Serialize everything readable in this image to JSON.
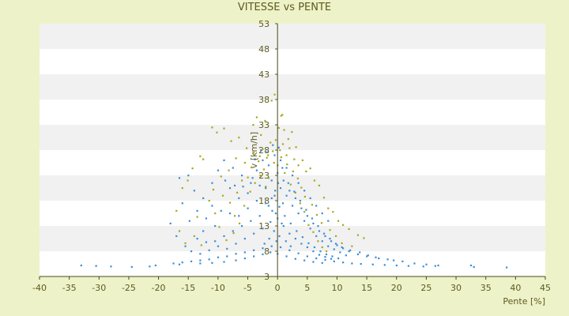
{
  "chart_data": {
    "type": "scatter",
    "title": "VITESSE vs PENTE",
    "xlabel": "Pente [%]",
    "ylabel": "v [km/h]",
    "xlim": [
      -40,
      45
    ],
    "ylim": [
      3,
      53
    ],
    "x_ticks": [
      -40,
      -35,
      -30,
      -25,
      -20,
      -15,
      -10,
      -5,
      0,
      5,
      10,
      15,
      20,
      25,
      30,
      35,
      40,
      45
    ],
    "y_ticks": [
      3,
      8,
      13,
      18,
      23,
      28,
      33,
      38,
      43,
      48,
      53
    ],
    "grid": "horizontal alternating bands",
    "legend": "none",
    "colors": {
      "plot_background": "#ffffff",
      "band": "#f1f1f1",
      "page_background": "#eef2c9",
      "series_1": "#3a8fd8",
      "series_2": "#a8a820",
      "axis": "#4a4a18",
      "text": "#5e5a1e"
    },
    "series": [
      {
        "color": "#a8a820",
        "points": [
          [
            -11.0,
            32.5
          ],
          [
            -10.2,
            31.5
          ],
          [
            -9.0,
            32.3
          ],
          [
            -7.8,
            29.8
          ],
          [
            -6.5,
            30.5
          ],
          [
            -5.2,
            28.4
          ],
          [
            -4.1,
            33.0
          ],
          [
            -3.5,
            34.5
          ],
          [
            -2.8,
            31.0
          ],
          [
            -2.1,
            33.8
          ],
          [
            -1.0,
            37.8
          ],
          [
            -0.5,
            39.0
          ],
          [
            0.2,
            32.4
          ],
          [
            0.6,
            34.8
          ],
          [
            1.1,
            32.0
          ],
          [
            1.8,
            30.2
          ],
          [
            2.4,
            31.6
          ],
          [
            3.1,
            28.6
          ],
          [
            -12.5,
            26.2
          ],
          [
            -13.0,
            26.8
          ],
          [
            -14.3,
            24.4
          ],
          [
            -15.1,
            22.0
          ],
          [
            -16.0,
            20.5
          ],
          [
            -17.0,
            16.0
          ],
          [
            -9.5,
            22.8
          ],
          [
            -8.2,
            24.0
          ],
          [
            -7.0,
            26.4
          ],
          [
            -6.0,
            22.0
          ],
          [
            -5.5,
            25.5
          ],
          [
            -4.0,
            27.5
          ],
          [
            -3.2,
            25.8
          ],
          [
            -2.5,
            28.2
          ],
          [
            -1.8,
            26.5
          ],
          [
            -1.2,
            29.5
          ],
          [
            -0.8,
            27.8
          ],
          [
            -0.3,
            30.0
          ],
          [
            0.4,
            28.0
          ],
          [
            0.9,
            29.2
          ],
          [
            1.5,
            27.0
          ],
          [
            2.0,
            28.4
          ],
          [
            2.8,
            26.2
          ],
          [
            3.5,
            25.0
          ],
          [
            4.2,
            26.0
          ],
          [
            4.8,
            23.8
          ],
          [
            5.5,
            24.4
          ],
          [
            6.2,
            22.0
          ],
          [
            7.0,
            21.0
          ],
          [
            7.8,
            18.6
          ],
          [
            8.5,
            16.5
          ],
          [
            9.3,
            15.8
          ],
          [
            10.2,
            14.0
          ],
          [
            11.0,
            13.2
          ],
          [
            12.0,
            12.4
          ],
          [
            13.5,
            11.2
          ],
          [
            14.5,
            10.6
          ],
          [
            -11.5,
            18.0
          ],
          [
            -10.5,
            15.5
          ],
          [
            -9.8,
            12.8
          ],
          [
            -8.6,
            10.2
          ],
          [
            -7.4,
            11.6
          ],
          [
            -6.4,
            13.5
          ],
          [
            -5.6,
            17.0
          ],
          [
            -4.6,
            19.8
          ],
          [
            -3.8,
            21.5
          ],
          [
            -2.9,
            23.0
          ],
          [
            -2.0,
            20.8
          ],
          [
            -1.5,
            22.5
          ],
          [
            0.0,
            25.0
          ],
          [
            1.2,
            23.5
          ],
          [
            2.2,
            21.2
          ],
          [
            3.0,
            19.6
          ],
          [
            3.8,
            17.5
          ],
          [
            4.5,
            15.8
          ],
          [
            5.2,
            13.2
          ],
          [
            6.0,
            11.8
          ],
          [
            6.8,
            10.0
          ],
          [
            7.5,
            8.8
          ],
          [
            8.2,
            8.0
          ],
          [
            -14.0,
            11.0
          ],
          [
            -12.8,
            9.2
          ],
          [
            -15.5,
            9.6
          ],
          [
            -13.5,
            14.8
          ],
          [
            -16.5,
            12.0
          ],
          [
            -10.8,
            20.2
          ],
          [
            -9.2,
            19.0
          ],
          [
            -8.0,
            17.6
          ],
          [
            -7.2,
            15.0
          ],
          [
            -6.8,
            19.6
          ],
          [
            -5.0,
            22.6
          ],
          [
            -4.4,
            24.6
          ],
          [
            -3.0,
            26.8
          ],
          [
            -2.3,
            24.2
          ],
          [
            -1.6,
            27.0
          ],
          [
            -0.6,
            25.5
          ],
          [
            0.6,
            26.6
          ],
          [
            1.6,
            25.2
          ],
          [
            2.6,
            23.8
          ],
          [
            3.4,
            22.4
          ],
          [
            4.0,
            20.6
          ],
          [
            4.6,
            18.8
          ],
          [
            5.8,
            17.2
          ],
          [
            6.6,
            15.2
          ],
          [
            7.4,
            13.6
          ],
          [
            8.8,
            12.2
          ],
          [
            9.8,
            11.0
          ],
          [
            10.8,
            9.6
          ],
          [
            12.5,
            9.0
          ],
          [
            0.8,
            35.0
          ]
        ]
      },
      {
        "color": "#3a8fd8",
        "points": [
          [
            -33.0,
            5.2
          ],
          [
            -30.5,
            5.1
          ],
          [
            -28.0,
            5.0
          ],
          [
            -24.5,
            4.9
          ],
          [
            -21.5,
            5.0
          ],
          [
            -20.5,
            5.2
          ],
          [
            -17.5,
            5.6
          ],
          [
            -16.0,
            5.8
          ],
          [
            -14.5,
            6.0
          ],
          [
            -13.0,
            6.2
          ],
          [
            -11.5,
            6.4
          ],
          [
            -10.0,
            6.8
          ],
          [
            -8.5,
            7.0
          ],
          [
            -7.0,
            7.5
          ],
          [
            -5.5,
            7.8
          ],
          [
            -4.0,
            8.2
          ],
          [
            -2.5,
            8.6
          ],
          [
            -1.0,
            9.0
          ],
          [
            0.5,
            8.8
          ],
          [
            2.0,
            8.2
          ],
          [
            3.5,
            7.6
          ],
          [
            5.0,
            7.0
          ],
          [
            6.5,
            6.6
          ],
          [
            8.0,
            6.3
          ],
          [
            9.5,
            6.0
          ],
          [
            11.0,
            5.8
          ],
          [
            12.5,
            5.6
          ],
          [
            14.0,
            5.5
          ],
          [
            16.0,
            5.4
          ],
          [
            18.0,
            5.3
          ],
          [
            20.0,
            5.2
          ],
          [
            22.0,
            5.1
          ],
          [
            24.5,
            5.0
          ],
          [
            26.5,
            5.1
          ],
          [
            32.5,
            5.2
          ],
          [
            33.0,
            4.9
          ],
          [
            38.5,
            4.8
          ],
          [
            -15.0,
            23.0
          ],
          [
            -16.5,
            22.5
          ],
          [
            -14.0,
            20.0
          ],
          [
            -12.5,
            18.5
          ],
          [
            -11.0,
            17.0
          ],
          [
            -9.5,
            16.0
          ],
          [
            -8.0,
            15.5
          ],
          [
            -6.5,
            15.0
          ],
          [
            -5.0,
            16.5
          ],
          [
            -3.5,
            18.0
          ],
          [
            -2.0,
            20.5
          ],
          [
            -1.0,
            22.0
          ],
          [
            0.0,
            23.5
          ],
          [
            1.0,
            22.0
          ],
          [
            2.0,
            20.0
          ],
          [
            3.0,
            18.5
          ],
          [
            4.0,
            16.5
          ],
          [
            5.0,
            15.0
          ],
          [
            6.0,
            13.5
          ],
          [
            7.0,
            12.0
          ],
          [
            8.0,
            11.0
          ],
          [
            9.0,
            10.0
          ],
          [
            10.0,
            9.2
          ],
          [
            11.0,
            8.6
          ],
          [
            12.0,
            8.0
          ],
          [
            13.5,
            7.4
          ],
          [
            15.0,
            7.0
          ],
          [
            17.0,
            6.6
          ],
          [
            19.5,
            6.2
          ],
          [
            -13.5,
            10.5
          ],
          [
            -12.0,
            9.8
          ],
          [
            -10.5,
            10.0
          ],
          [
            -9.0,
            11.0
          ],
          [
            -7.5,
            12.0
          ],
          [
            -6.0,
            13.0
          ],
          [
            -4.5,
            14.0
          ],
          [
            -3.0,
            15.0
          ],
          [
            -1.5,
            17.0
          ],
          [
            -0.5,
            19.0
          ],
          [
            0.5,
            20.5
          ],
          [
            1.5,
            19.0
          ],
          [
            2.5,
            17.0
          ],
          [
            3.5,
            15.5
          ],
          [
            4.5,
            14.0
          ],
          [
            5.5,
            12.5
          ],
          [
            6.5,
            11.0
          ],
          [
            7.5,
            10.0
          ],
          [
            8.5,
            9.0
          ],
          [
            9.5,
            8.4
          ],
          [
            10.5,
            7.8
          ],
          [
            11.5,
            7.2
          ],
          [
            -18.0,
            13.5
          ],
          [
            -17.0,
            11.0
          ],
          [
            -15.5,
            9.0
          ],
          [
            -14.5,
            8.0
          ],
          [
            -13.0,
            7.5
          ],
          [
            -11.5,
            8.2
          ],
          [
            -10.0,
            9.0
          ],
          [
            -8.5,
            8.5
          ],
          [
            -7.0,
            9.5
          ],
          [
            -5.5,
            10.5
          ],
          [
            -4.0,
            11.5
          ],
          [
            -2.5,
            12.5
          ],
          [
            -1.2,
            13.8
          ],
          [
            -0.3,
            15.5
          ],
          [
            0.3,
            16.8
          ],
          [
            1.2,
            15.0
          ],
          [
            2.2,
            13.5
          ],
          [
            3.2,
            12.0
          ],
          [
            4.2,
            10.8
          ],
          [
            5.2,
            9.6
          ],
          [
            6.2,
            8.8
          ],
          [
            7.2,
            8.0
          ],
          [
            8.2,
            7.4
          ],
          [
            9.2,
            7.0
          ],
          [
            10.2,
            6.6
          ],
          [
            -9.0,
            26.0
          ],
          [
            -7.5,
            24.5
          ],
          [
            -6.0,
            23.0
          ],
          [
            -4.5,
            21.5
          ],
          [
            -3.5,
            24.0
          ],
          [
            -2.5,
            26.0
          ],
          [
            -1.5,
            25.0
          ],
          [
            -0.5,
            27.0
          ],
          [
            0.5,
            26.0
          ],
          [
            1.5,
            24.5
          ],
          [
            2.5,
            23.0
          ],
          [
            3.5,
            21.5
          ],
          [
            4.5,
            20.0
          ],
          [
            5.5,
            18.5
          ],
          [
            6.5,
            17.0
          ],
          [
            7.5,
            15.5
          ],
          [
            8.5,
            14.0
          ],
          [
            -10.5,
            13.0
          ],
          [
            -12.0,
            14.5
          ],
          [
            -13.5,
            16.0
          ],
          [
            -11.0,
            21.5
          ],
          [
            -8.0,
            20.5
          ],
          [
            -6.5,
            18.5
          ],
          [
            -5.0,
            19.5
          ],
          [
            -3.0,
            21.0
          ],
          [
            -2.0,
            17.5
          ],
          [
            -1.0,
            18.5
          ],
          [
            0.0,
            14.5
          ],
          [
            1.0,
            13.0
          ],
          [
            2.0,
            11.5
          ],
          [
            3.0,
            10.5
          ],
          [
            4.0,
            9.5
          ],
          [
            5.0,
            8.8
          ],
          [
            6.0,
            8.0
          ],
          [
            7.0,
            7.3
          ],
          [
            8.0,
            6.9
          ],
          [
            9.0,
            6.5
          ],
          [
            -5.5,
            6.6
          ],
          [
            -4.0,
            7.0
          ],
          [
            -2.5,
            7.4
          ],
          [
            -1.2,
            7.8
          ],
          [
            0.0,
            7.5
          ],
          [
            1.5,
            7.0
          ],
          [
            3.0,
            6.5
          ],
          [
            4.5,
            6.2
          ],
          [
            6.0,
            5.9
          ],
          [
            7.5,
            5.7
          ],
          [
            -7.0,
            6.2
          ],
          [
            -9.0,
            5.9
          ],
          [
            -11.0,
            5.7
          ],
          [
            -13.0,
            5.6
          ],
          [
            -16.5,
            5.4
          ],
          [
            -12.5,
            12.0
          ],
          [
            -14.8,
            14.0
          ],
          [
            -16.0,
            17.5
          ],
          [
            -10.0,
            24.0
          ],
          [
            -8.8,
            22.0
          ],
          [
            -7.2,
            21.0
          ],
          [
            -5.8,
            20.8
          ],
          [
            -4.2,
            22.5
          ],
          [
            -3.8,
            26.2
          ],
          [
            -2.8,
            28.0
          ],
          [
            -1.8,
            27.6
          ],
          [
            -0.8,
            29.0
          ],
          [
            0.2,
            28.5
          ],
          [
            0.8,
            24.5
          ],
          [
            1.8,
            21.5
          ],
          [
            2.8,
            19.8
          ],
          [
            3.8,
            18.0
          ],
          [
            4.8,
            16.2
          ],
          [
            5.8,
            14.5
          ],
          [
            6.8,
            13.0
          ],
          [
            7.8,
            11.5
          ],
          [
            8.8,
            10.5
          ],
          [
            9.8,
            9.5
          ],
          [
            10.8,
            8.8
          ],
          [
            12.2,
            8.2
          ],
          [
            13.8,
            7.8
          ],
          [
            15.2,
            7.2
          ],
          [
            16.5,
            6.8
          ],
          [
            18.5,
            6.4
          ],
          [
            21.0,
            6.0
          ],
          [
            23.0,
            5.6
          ],
          [
            25.0,
            5.4
          ],
          [
            27.0,
            5.2
          ],
          [
            -0.2,
            10.0
          ],
          [
            -0.6,
            12.0
          ],
          [
            0.3,
            11.0
          ],
          [
            0.7,
            13.5
          ],
          [
            -0.4,
            20.0
          ],
          [
            0.1,
            21.5
          ],
          [
            -0.9,
            16.0
          ],
          [
            0.9,
            17.5
          ],
          [
            -1.4,
            10.5
          ],
          [
            1.4,
            10.0
          ],
          [
            -2.2,
            9.5
          ],
          [
            2.2,
            9.0
          ]
        ]
      }
    ]
  }
}
